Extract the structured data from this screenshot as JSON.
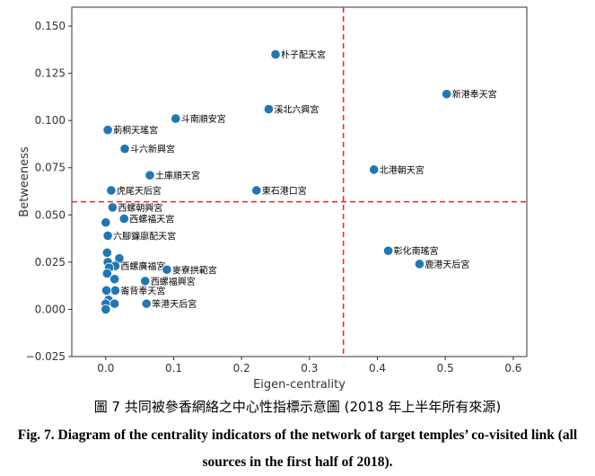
{
  "chart_data": {
    "type": "scatter",
    "xlabel": "Eigen-centrality",
    "ylabel": "Betweeness",
    "xlim": [
      -0.05,
      0.62
    ],
    "ylim": [
      -0.025,
      0.16
    ],
    "xticks": [
      0.0,
      0.1,
      0.2,
      0.3,
      0.4,
      0.5,
      0.6
    ],
    "xtick_labels": [
      "0.0",
      "0.1",
      "0.2",
      "0.3",
      "0.4",
      "0.5",
      "0.6"
    ],
    "yticks": [
      -0.025,
      0.0,
      0.025,
      0.05,
      0.075,
      0.1,
      0.125,
      0.15
    ],
    "ytick_labels": [
      "−0.025",
      "0.000",
      "0.025",
      "0.050",
      "0.075",
      "0.100",
      "0.125",
      "0.150"
    ],
    "grid": false,
    "reference_lines": {
      "vertical_x": 0.35,
      "horizontal_y": 0.057,
      "color": "#e8262a",
      "style": "dashed"
    },
    "marker_color": "#1f77b4",
    "points": [
      {
        "x": 0.25,
        "y": 0.135,
        "label": "朴子配天宮"
      },
      {
        "x": 0.502,
        "y": 0.114,
        "label": "新港奉天宮"
      },
      {
        "x": 0.24,
        "y": 0.106,
        "label": "溪北六興宮"
      },
      {
        "x": 0.103,
        "y": 0.101,
        "label": "斗南順安宮"
      },
      {
        "x": 0.003,
        "y": 0.095,
        "label": "莿桐天瑤宮"
      },
      {
        "x": 0.028,
        "y": 0.085,
        "label": "斗六新興宮"
      },
      {
        "x": 0.395,
        "y": 0.074,
        "label": "北港朝天宮"
      },
      {
        "x": 0.065,
        "y": 0.071,
        "label": "土庫順天宮"
      },
      {
        "x": 0.222,
        "y": 0.063,
        "label": "東石港口宮"
      },
      {
        "x": 0.008,
        "y": 0.063,
        "label": "虎尾天后宮"
      },
      {
        "x": 0.01,
        "y": 0.054,
        "label": "西螺朝興宮"
      },
      {
        "x": 0.027,
        "y": 0.048,
        "label": "西螺福天宮"
      },
      {
        "x": 0.0,
        "y": 0.046,
        "label": ""
      },
      {
        "x": 0.003,
        "y": 0.039,
        "label": "六腳鐮廍配天宮"
      },
      {
        "x": 0.416,
        "y": 0.031,
        "label": "彰化南瑤宮"
      },
      {
        "x": 0.462,
        "y": 0.024,
        "label": "鹿港天后宮"
      },
      {
        "x": 0.002,
        "y": 0.03,
        "label": ""
      },
      {
        "x": 0.02,
        "y": 0.027,
        "label": ""
      },
      {
        "x": 0.003,
        "y": 0.025,
        "label": ""
      },
      {
        "x": 0.014,
        "y": 0.023,
        "label": "西螺廣福宮"
      },
      {
        "x": 0.005,
        "y": 0.022,
        "label": ""
      },
      {
        "x": 0.09,
        "y": 0.021,
        "label": "麥寮拱範宮"
      },
      {
        "x": 0.002,
        "y": 0.019,
        "label": ""
      },
      {
        "x": 0.013,
        "y": 0.016,
        "label": ""
      },
      {
        "x": 0.058,
        "y": 0.015,
        "label": "西螺福興宮"
      },
      {
        "x": 0.014,
        "y": 0.01,
        "label": "崙背奉天宮"
      },
      {
        "x": 0.001,
        "y": 0.01,
        "label": ""
      },
      {
        "x": 0.004,
        "y": 0.005,
        "label": ""
      },
      {
        "x": 0.0,
        "y": 0.003,
        "label": ""
      },
      {
        "x": 0.013,
        "y": 0.003,
        "label": ""
      },
      {
        "x": 0.06,
        "y": 0.003,
        "label": "笨港天后宮"
      },
      {
        "x": 0.0,
        "y": 0.0,
        "label": ""
      }
    ]
  },
  "captions": {
    "zh": "圖 7 共同被參香網絡之中心性指標示意圖 (2018 年上半年所有來源)",
    "en": "Fig. 7. Diagram of the centrality indicators of the network of target temples’ co-visited link (all sources in the first half of 2018)."
  }
}
